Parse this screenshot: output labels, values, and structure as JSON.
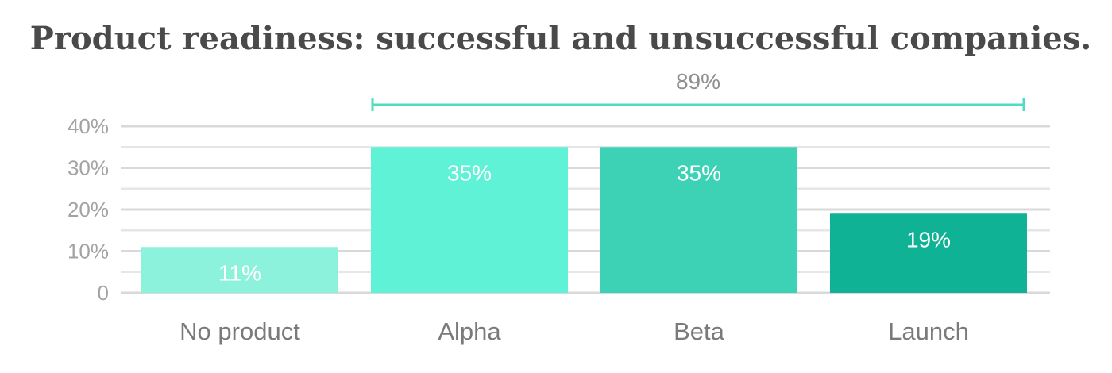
{
  "chart_data": {
    "type": "bar",
    "title": "Product readiness: successful and unsuccessful companies.",
    "categories": [
      "No product",
      "Alpha",
      "Beta",
      "Launch"
    ],
    "values": [
      11,
      35,
      35,
      19
    ],
    "value_labels": [
      "11%",
      "35%",
      "35%",
      "19%"
    ],
    "colors": [
      "#8df2dc",
      "#5ff2d6",
      "#3dd2b5",
      "#0fb294"
    ],
    "ylim": [
      0,
      40
    ],
    "yticks": [
      {
        "value": 0,
        "label": "0"
      },
      {
        "value": 10,
        "label": "10%"
      },
      {
        "value": 20,
        "label": "20%"
      },
      {
        "value": 30,
        "label": "30%"
      },
      {
        "value": 40,
        "label": "40%"
      }
    ],
    "grid": true,
    "annotation": {
      "label": "89%",
      "from_category": "Alpha",
      "to_category": "Launch",
      "color": "#4fdcc0"
    }
  }
}
